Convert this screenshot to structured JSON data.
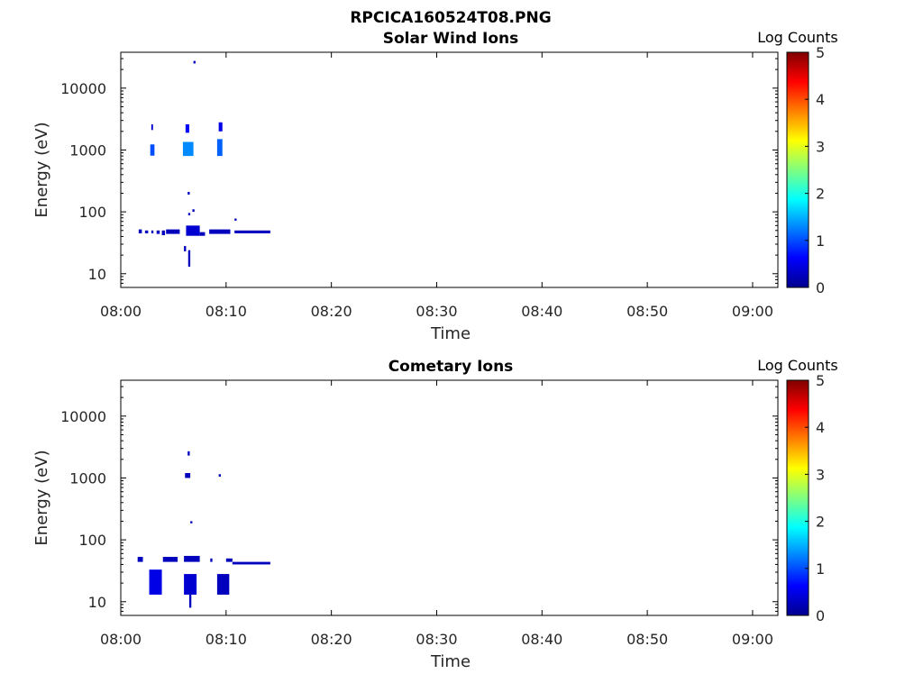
{
  "figure_title": "RPCICA160524T08.PNG",
  "colorbar": {
    "label": "Log Counts",
    "range": [
      0,
      5
    ],
    "ticks": [
      "0",
      "1",
      "2",
      "3",
      "4",
      "5"
    ],
    "colormap": "jet"
  },
  "chart_data": [
    {
      "type": "heatmap",
      "title": "Solar Wind Ions",
      "xlabel": "Time",
      "ylabel": "Energy (eV)",
      "xlim_minutes": [
        0,
        62.4
      ],
      "ylim": [
        6,
        38000
      ],
      "yscale": "log",
      "xtick_labels": [
        "08:00",
        "08:10",
        "08:20",
        "08:30",
        "08:40",
        "08:50",
        "09:00"
      ],
      "ytick_labels": [
        "10",
        "100",
        "1000",
        "10000"
      ],
      "ytick_values": [
        10,
        100,
        1000,
        10000
      ],
      "cells_note": "t0,t1 minutes after 08:00; e0,e1 eV; log counts",
      "cells": [
        [
          6.9,
          7.1,
          25000,
          27500,
          0.3
        ],
        [
          2.9,
          3.06,
          2100,
          2600,
          0.4
        ],
        [
          2.8,
          3.2,
          810,
          1230,
          1.0
        ],
        [
          5.9,
          6.9,
          800,
          1350,
          1.3
        ],
        [
          6.15,
          6.5,
          1900,
          2600,
          0.6
        ],
        [
          9.15,
          9.65,
          800,
          1500,
          1.1
        ],
        [
          9.3,
          9.65,
          2000,
          2800,
          0.5
        ],
        [
          1.7,
          2.0,
          45,
          52,
          0.3
        ],
        [
          2.3,
          2.6,
          45,
          50,
          0.3
        ],
        [
          2.9,
          3.1,
          45,
          50,
          0.3
        ],
        [
          3.4,
          3.7,
          44,
          50,
          0.3
        ],
        [
          3.9,
          4.2,
          42,
          50,
          0.3
        ],
        [
          4.3,
          5.6,
          44,
          52,
          0.3
        ],
        [
          6.2,
          7.5,
          41,
          60,
          0.4
        ],
        [
          7.5,
          8.0,
          41,
          47,
          0.3
        ],
        [
          8.4,
          10.4,
          44,
          52,
          0.3
        ],
        [
          10.8,
          14.2,
          45,
          50,
          0.3
        ],
        [
          6.4,
          6.6,
          13,
          24,
          0.3
        ],
        [
          6.0,
          6.2,
          23,
          28,
          0.3
        ],
        [
          6.35,
          6.55,
          190,
          210,
          0.3
        ],
        [
          6.4,
          6.6,
          88,
          96,
          0.3
        ],
        [
          6.8,
          7.0,
          100,
          110,
          0.3
        ],
        [
          10.8,
          11.0,
          72,
          78,
          0.3
        ]
      ]
    },
    {
      "type": "heatmap",
      "title": "Cometary Ions",
      "xlabel": "Time",
      "ylabel": "Energy (eV)",
      "xlim_minutes": [
        0,
        62.4
      ],
      "ylim": [
        6,
        38000
      ],
      "yscale": "log",
      "xtick_labels": [
        "08:00",
        "08:10",
        "08:20",
        "08:30",
        "08:40",
        "08:50",
        "09:00"
      ],
      "ytick_labels": [
        "10",
        "100",
        "1000",
        "10000"
      ],
      "ytick_values": [
        10,
        100,
        1000,
        10000
      ],
      "cells": [
        [
          6.35,
          6.55,
          2300,
          2700,
          0.3
        ],
        [
          6.1,
          6.6,
          1000,
          1200,
          0.3
        ],
        [
          9.3,
          9.5,
          1050,
          1150,
          0.3
        ],
        [
          6.6,
          6.8,
          185,
          200,
          0.3
        ],
        [
          1.6,
          2.1,
          44,
          53,
          0.3
        ],
        [
          4.0,
          5.4,
          44,
          53,
          0.3
        ],
        [
          6.0,
          7.5,
          44,
          55,
          0.3
        ],
        [
          8.5,
          8.7,
          44,
          50,
          0.3
        ],
        [
          10.0,
          10.6,
          44,
          50,
          0.3
        ],
        [
          10.6,
          14.2,
          40,
          44,
          0.3
        ],
        [
          2.7,
          3.9,
          13,
          33,
          0.5
        ],
        [
          6.0,
          7.2,
          13,
          28,
          0.4
        ],
        [
          9.15,
          10.3,
          13,
          28,
          0.3
        ],
        [
          6.5,
          6.7,
          8,
          13,
          0.3
        ]
      ]
    }
  ]
}
